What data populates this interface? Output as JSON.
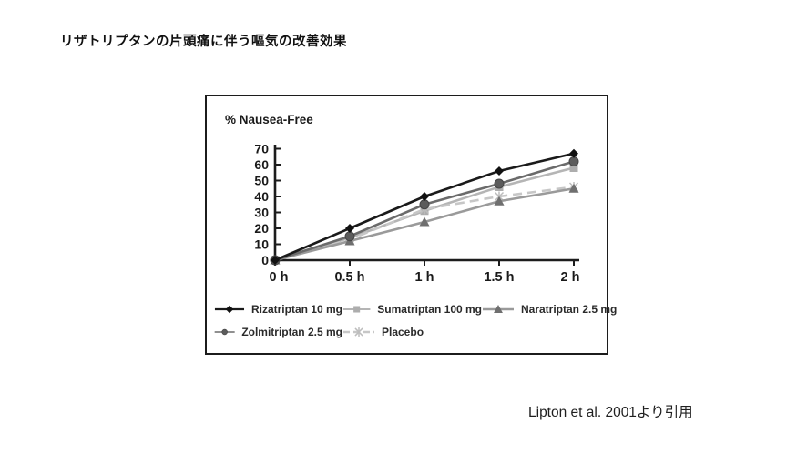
{
  "page": {
    "title": "リザトリプタンの片頭痛に伴う嘔気の改善効果",
    "citation": "Lipton et al. 2001より引用"
  },
  "chart_data": {
    "type": "line",
    "title": "% Nausea-Free",
    "xlabel": "",
    "ylabel": "% Nausea-Free",
    "categories": [
      "0 h",
      "0.5 h",
      "1 h",
      "1.5 h",
      "2 h"
    ],
    "x": [
      0,
      0.5,
      1,
      1.5,
      2
    ],
    "ylim": [
      0,
      70
    ],
    "ytick_step": 10,
    "grid": false,
    "legend_position": "bottom",
    "axis_color": "#1c1c1c",
    "series": [
      {
        "name": "Rizatriptan 10 mg",
        "marker": "diamond",
        "color": "#1a1a1a",
        "marker_color": "#111111",
        "dash": false,
        "values": [
          0,
          20,
          40,
          56,
          67
        ]
      },
      {
        "name": "Sumatriptan 100 mg",
        "marker": "square",
        "color": "#b5b5b5",
        "marker_color": "#adadad",
        "dash": false,
        "values": [
          0,
          14,
          31,
          46,
          58
        ]
      },
      {
        "name": "Naratriptan 2.5 mg",
        "marker": "triangle",
        "color": "#9a9a9a",
        "marker_color": "#6f6f6f",
        "dash": false,
        "values": [
          0,
          12,
          24,
          37,
          45
        ]
      },
      {
        "name": "Zolmitriptan 2.5 mg",
        "marker": "circle",
        "color": "#6b6b6b",
        "marker_color": "#5c5c5c",
        "dash": false,
        "values": [
          0,
          15,
          35,
          48,
          62
        ]
      },
      {
        "name": "Placebo",
        "marker": "star",
        "color": "#c7c7c7",
        "marker_color": "#bdbdbd",
        "dash": true,
        "values": [
          0,
          13,
          32,
          40,
          46
        ]
      }
    ]
  }
}
